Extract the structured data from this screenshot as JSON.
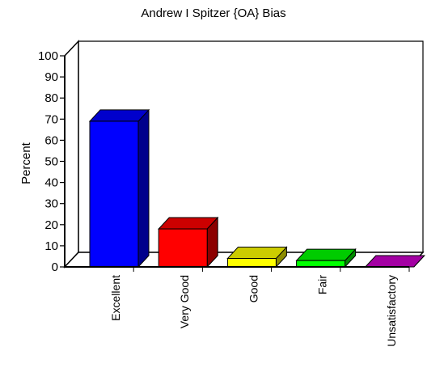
{
  "chart_data": {
    "type": "bar",
    "title": "Andrew I Spitzer {OA} Bias",
    "ylabel": "Percent",
    "xlabel": "",
    "ylim": [
      0,
      100
    ],
    "yticks": [
      0,
      10,
      20,
      30,
      40,
      50,
      60,
      70,
      80,
      90,
      100
    ],
    "categories": [
      "Excellent",
      "Very Good",
      "Good",
      "Fair",
      "Unsatisfactory"
    ],
    "values": [
      69,
      18,
      4,
      3,
      0
    ],
    "colors": [
      "#0000ff",
      "#ff0000",
      "#ffff00",
      "#00ff00",
      "#cc00cc"
    ],
    "grid": false,
    "legend": "none",
    "style": "3d"
  }
}
